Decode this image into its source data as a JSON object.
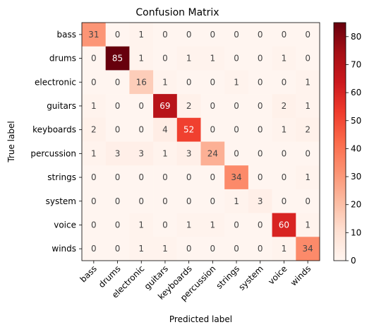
{
  "chart_data": {
    "type": "heatmap",
    "title": "Confusion Matrix",
    "xlabel": "Predicted label",
    "ylabel": "True label",
    "x_categories": [
      "bass",
      "drums",
      "electronic",
      "guitars",
      "keyboards",
      "percussion",
      "strings",
      "system",
      "voice",
      "winds"
    ],
    "y_categories": [
      "bass",
      "drums",
      "electronic",
      "guitars",
      "keyboards",
      "percussion",
      "strings",
      "system",
      "voice",
      "winds"
    ],
    "matrix": [
      [
        31,
        0,
        1,
        0,
        0,
        0,
        0,
        0,
        0,
        0
      ],
      [
        0,
        85,
        1,
        0,
        1,
        1,
        0,
        0,
        1,
        0
      ],
      [
        0,
        0,
        16,
        1,
        0,
        0,
        1,
        0,
        0,
        1
      ],
      [
        1,
        0,
        0,
        69,
        2,
        0,
        0,
        0,
        2,
        1
      ],
      [
        2,
        0,
        0,
        4,
        52,
        0,
        0,
        0,
        1,
        2
      ],
      [
        1,
        3,
        3,
        1,
        3,
        24,
        0,
        0,
        0,
        0
      ],
      [
        0,
        0,
        0,
        0,
        0,
        0,
        34,
        0,
        0,
        1
      ],
      [
        0,
        0,
        0,
        0,
        0,
        0,
        1,
        3,
        0,
        0
      ],
      [
        0,
        0,
        1,
        0,
        1,
        1,
        0,
        0,
        60,
        1
      ],
      [
        0,
        0,
        1,
        1,
        0,
        0,
        0,
        0,
        1,
        34
      ]
    ],
    "colormap": "Reds",
    "colorbar": {
      "vmin": 0,
      "vmax": 85,
      "ticks": [
        0,
        10,
        20,
        30,
        40,
        50,
        60,
        70,
        80
      ]
    }
  }
}
